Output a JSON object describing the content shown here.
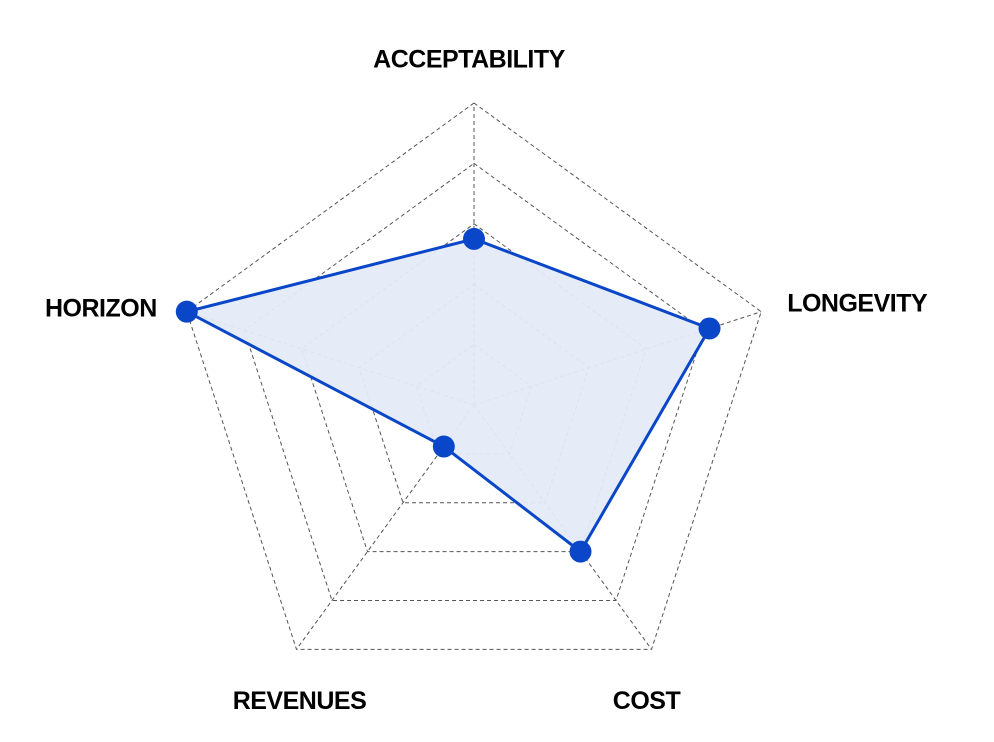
{
  "chart_data": {
    "type": "radar",
    "axes": [
      "ACCEPTABILITY",
      "LONGEVITY",
      "COST",
      "REVENUES",
      "HORIZON"
    ],
    "values": [
      0.55,
      0.82,
      0.6,
      0.17,
      1.0
    ],
    "rlim": [
      0,
      1
    ],
    "grid_levels": 5,
    "grid": true,
    "colors": {
      "line": "#0A47C8",
      "fill": "#E4EAF7",
      "marker": "#0A47C8"
    }
  }
}
